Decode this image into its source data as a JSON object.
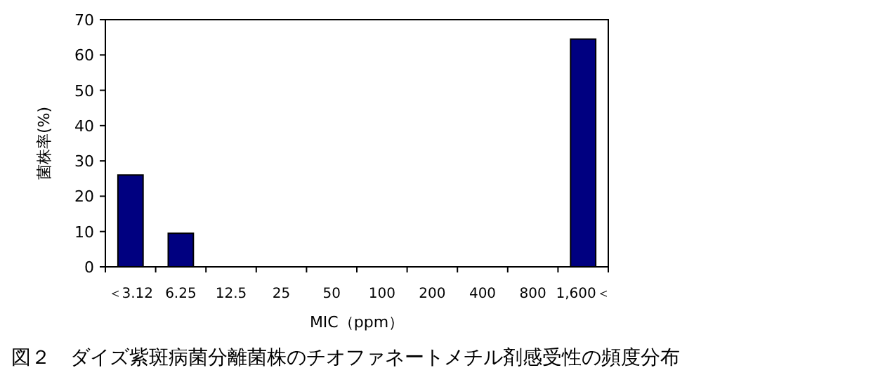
{
  "chart_data": {
    "type": "bar",
    "title": "図２　ダイズ紫斑病菌分離菌株のチオファネートメチル剤感受性の頻度分布",
    "xlabel": "MIC（ppm）",
    "ylabel": "菌株率(%)",
    "categories": [
      "＜3.12",
      "6.25",
      "12.5",
      "25",
      "50",
      "100",
      "200",
      "400",
      "800",
      "1,600＜"
    ],
    "values": [
      26,
      9.5,
      0,
      0,
      0,
      0,
      0,
      0,
      0,
      64.5
    ],
    "color": "#000080",
    "ylim": [
      0,
      70
    ],
    "yticks": [
      0,
      10,
      20,
      30,
      40,
      50,
      60,
      70
    ],
    "grid": false
  }
}
